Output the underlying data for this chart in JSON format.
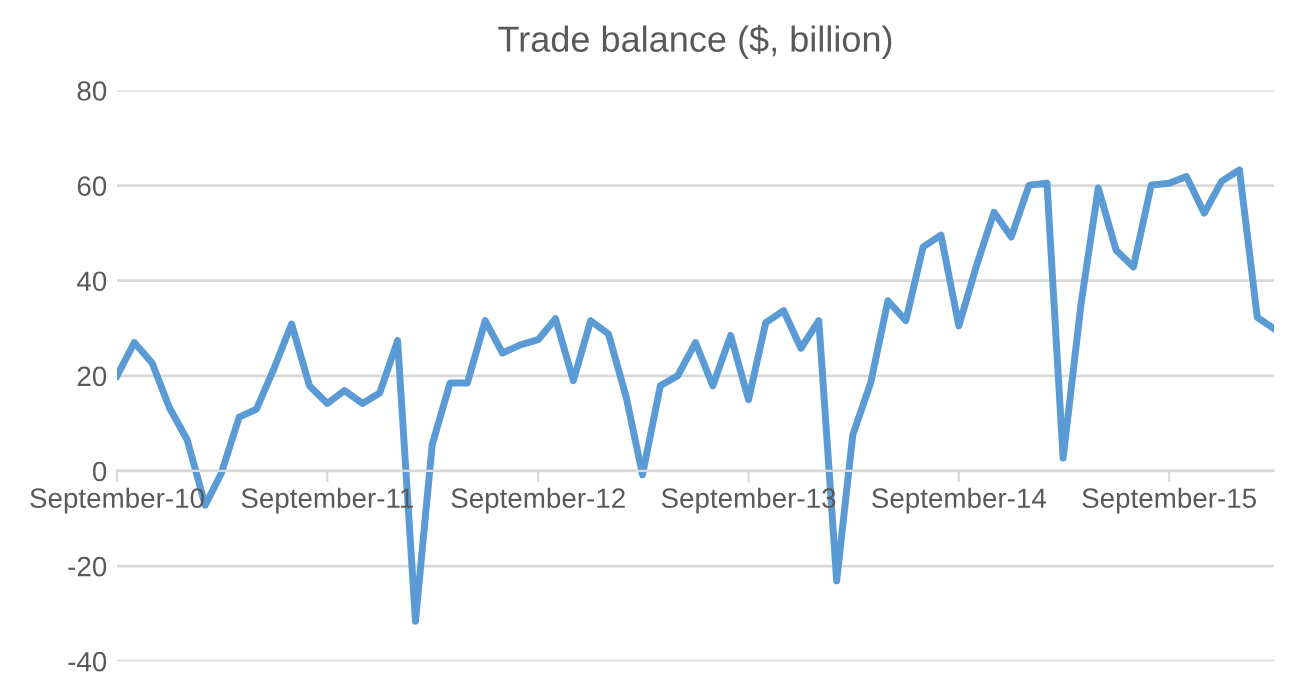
{
  "chart_data": {
    "type": "line",
    "title": "Trade balance ($, billion)",
    "x": [
      "2010-09",
      "2010-10",
      "2010-11",
      "2010-12",
      "2011-01",
      "2011-02",
      "2011-03",
      "2011-04",
      "2011-05",
      "2011-06",
      "2011-07",
      "2011-08",
      "2011-09",
      "2011-10",
      "2011-11",
      "2011-12",
      "2012-01",
      "2012-02",
      "2012-03",
      "2012-04",
      "2012-05",
      "2012-06",
      "2012-07",
      "2012-08",
      "2012-09",
      "2012-10",
      "2012-11",
      "2012-12",
      "2013-01",
      "2013-02",
      "2013-03",
      "2013-04",
      "2013-05",
      "2013-06",
      "2013-07",
      "2013-08",
      "2013-09",
      "2013-10",
      "2013-11",
      "2013-12",
      "2014-01",
      "2014-02",
      "2014-03",
      "2014-04",
      "2014-05",
      "2014-06",
      "2014-07",
      "2014-08",
      "2014-09",
      "2014-10",
      "2014-11",
      "2014-12",
      "2015-01",
      "2015-02",
      "2015-03",
      "2015-04",
      "2015-05",
      "2015-06",
      "2015-07",
      "2015-08",
      "2015-09",
      "2015-10",
      "2015-11",
      "2015-12",
      "2016-01",
      "2016-02",
      "2016-03"
    ],
    "series": [
      {
        "color": "#5b9bd5",
        "values": [
          20,
          27,
          22.7,
          13.3,
          6.5,
          -7.2,
          -0.5,
          11.3,
          13,
          21.7,
          30.9,
          17.9,
          14.2,
          16.9,
          14.2,
          16.4,
          27.4,
          -31.6,
          5.5,
          18.5,
          18.5,
          31.6,
          24.8,
          26.5,
          27.6,
          32,
          19,
          31.6,
          28.8,
          15.4,
          -0.8,
          17.9,
          20,
          27,
          17.9,
          28.5,
          15,
          31.2,
          33.7,
          25.8,
          31.6,
          -23.1,
          7.6,
          18.5,
          35.8,
          31.6,
          47.1,
          49.6,
          30.5,
          42.9,
          54.4,
          49.2,
          60.1,
          60.5,
          2.7,
          35,
          59.5,
          46.4,
          42.9,
          60.1,
          60.5,
          61.9,
          54.2,
          60.9,
          63.3,
          32.3,
          29.9
        ]
      }
    ],
    "xlim": [
      "2010-09",
      "2016-03"
    ],
    "xticks": [
      {
        "value": "2010-09",
        "label": "September-10"
      },
      {
        "value": "2011-09",
        "label": "September-11"
      },
      {
        "value": "2012-09",
        "label": "September-12"
      },
      {
        "value": "2013-09",
        "label": "September-13"
      },
      {
        "value": "2014-09",
        "label": "September-14"
      },
      {
        "value": "2015-09",
        "label": "September-15"
      }
    ],
    "ylim": [
      -40,
      80
    ],
    "yticks": [
      -40,
      -20,
      0,
      20,
      40,
      60,
      80
    ],
    "grid": "y",
    "marker": "none",
    "line_style": "solid",
    "legend": false
  }
}
